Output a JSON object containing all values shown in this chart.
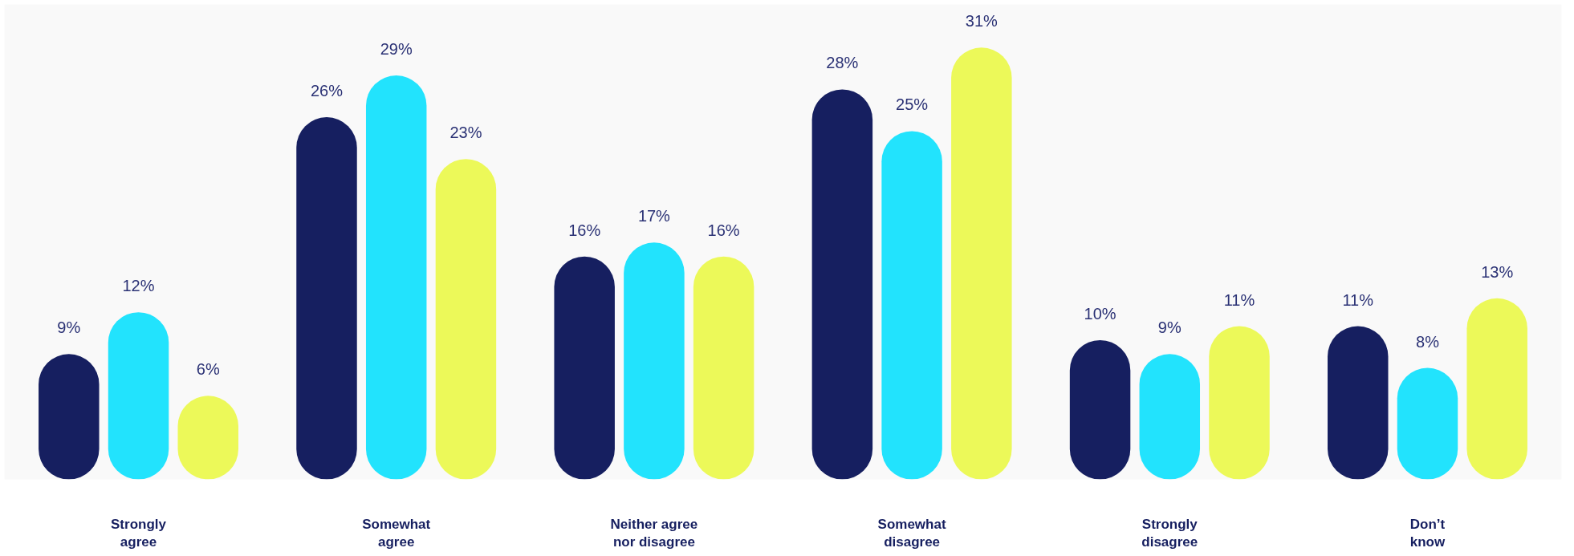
{
  "chart_data": {
    "type": "bar",
    "categories": [
      "Strongly\nagree",
      "Somewhat\nagree",
      "Neither agree\nnor disagree",
      "Somewhat\ndisagree",
      "Strongly\ndisagree",
      "Don’t\nknow"
    ],
    "series": [
      {
        "color": "#161f60",
        "values": [
          9,
          26,
          16,
          28,
          10,
          11
        ],
        "value_labels": [
          "9%",
          "26%",
          "16%",
          "28%",
          "10%",
          "11%"
        ]
      },
      {
        "color": "#22e3fd",
        "values": [
          12,
          29,
          17,
          25,
          9,
          8
        ],
        "value_labels": [
          "12%",
          "29%",
          "17%",
          "25%",
          "9%",
          "8%"
        ]
      },
      {
        "color": "#ecf959",
        "values": [
          6,
          23,
          16,
          31,
          11,
          13
        ],
        "value_labels": [
          "6%",
          "23%",
          "16%",
          "31%",
          "11%",
          "13%"
        ]
      }
    ],
    "grid": false
  }
}
